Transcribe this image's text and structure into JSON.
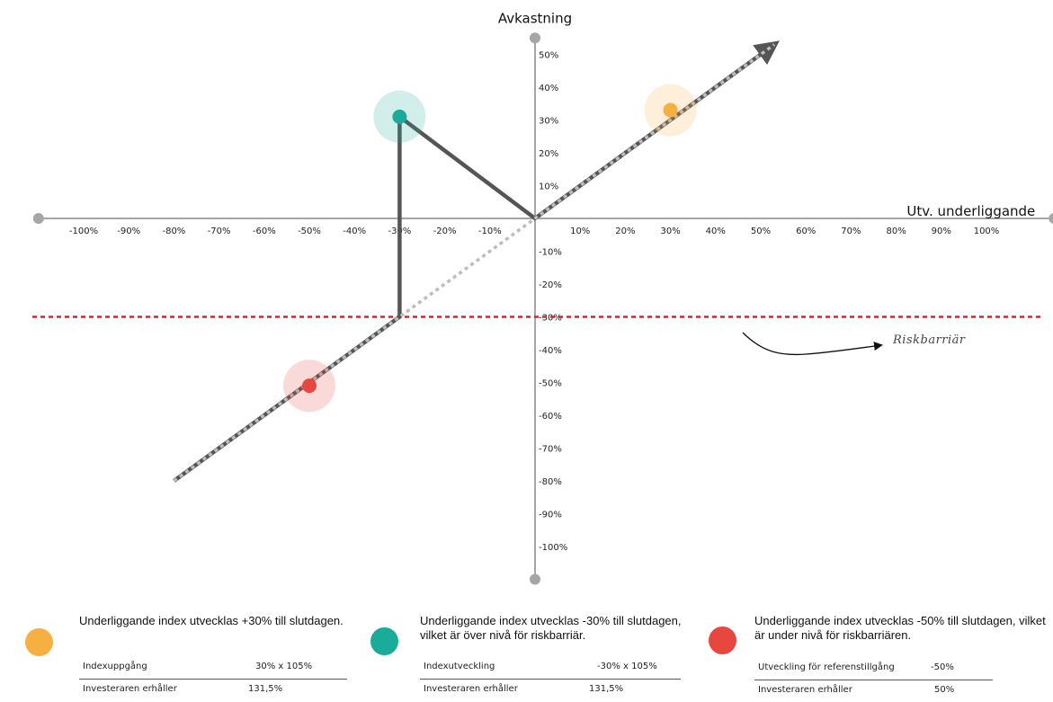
{
  "chart_data": {
    "type": "line",
    "xlabel": "Utv. underliggande",
    "ylabel": "Avkastning",
    "x_ticks": [
      "-100%",
      "-90%",
      "-80%",
      "-70%",
      "-60%",
      "-50%",
      "-40%",
      "-30%",
      "-20%",
      "-10%",
      "10%",
      "20%",
      "30%",
      "40%",
      "50%",
      "60%",
      "70%",
      "80%",
      "90%",
      "100%"
    ],
    "y_ticks": [
      "50%",
      "40%",
      "30%",
      "20%",
      "10%",
      "-10%",
      "-20%",
      "-30%",
      "-40%",
      "-50%",
      "-60%",
      "-70%",
      "-80%",
      "-90%",
      "-100%"
    ],
    "xlim": [
      -110,
      115
    ],
    "ylim": [
      -110,
      55
    ],
    "payoff_line": [
      [
        -80,
        -80
      ],
      [
        -30,
        -30
      ],
      [
        -30,
        31
      ],
      [
        0,
        0
      ],
      [
        52,
        52
      ]
    ],
    "reference_line": [
      [
        -80,
        -80
      ],
      [
        53,
        53
      ]
    ],
    "risk_barrier": -30,
    "risk_barrier_label": "Riskbarriär",
    "points": [
      {
        "x": 30,
        "y": 33,
        "color": "#f6b042"
      },
      {
        "x": -30,
        "y": 31,
        "color": "#1aab9b"
      },
      {
        "x": -50,
        "y": -51,
        "color": "#e8473f"
      }
    ]
  },
  "colors": {
    "payoff": "#555555",
    "reference": "#bdbdbd",
    "barrier": "#e0202a",
    "axis": "#a6a6a6",
    "orange": "#f6b042",
    "teal": "#1aab9b",
    "red": "#e8473f"
  },
  "scenarios": [
    {
      "description": "Underliggande index utvecklas +30% till slutdagen.",
      "row1_label": "Indexuppgång",
      "row1_value": "30% x 105%",
      "row2_label": "Investeraren erhåller",
      "row2_value": "131,5%"
    },
    {
      "description": "Underliggande index utvecklas -30% till slutdagen, vilket är över nivå för riskbarriär.",
      "row1_label": "Indexutveckling",
      "row1_value": "-30% x 105%",
      "row2_label": "Investeraren erhåller",
      "row2_value": "131,5%"
    },
    {
      "description": "Underliggande index utvecklas -50% till slutdagen, vilket är under nivå för riskbarriären.",
      "row1_label": "Utveckling för referenstillgång",
      "row1_value": "-50%",
      "row2_label": "Investeraren erhåller",
      "row2_value": "50%"
    }
  ]
}
